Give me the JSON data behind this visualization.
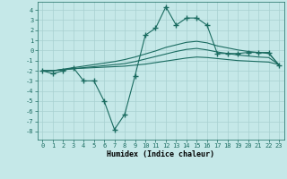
{
  "xlabel": "Humidex (Indice chaleur)",
  "background_color": "#c5e8e8",
  "grid_color": "#a8d0d0",
  "line_color": "#1a6b60",
  "xlim": [
    -0.5,
    23.5
  ],
  "ylim": [
    -8.8,
    4.8
  ],
  "yticks": [
    -8,
    -7,
    -6,
    -5,
    -4,
    -3,
    -2,
    -1,
    0,
    1,
    2,
    3,
    4
  ],
  "xticks": [
    0,
    1,
    2,
    3,
    4,
    5,
    6,
    7,
    8,
    9,
    10,
    11,
    12,
    13,
    14,
    15,
    16,
    17,
    18,
    19,
    20,
    21,
    22,
    23
  ],
  "series": [
    {
      "x": [
        0,
        1,
        2,
        3,
        4,
        5,
        6,
        7,
        8,
        9,
        10,
        11,
        12,
        13,
        14,
        15,
        16,
        17,
        18,
        19,
        20,
        21,
        22,
        23
      ],
      "y": [
        -2.0,
        -2.3,
        -2.0,
        -1.7,
        -3.0,
        -3.0,
        -5.0,
        -7.8,
        -6.3,
        -2.5,
        1.5,
        2.2,
        4.3,
        2.5,
        3.2,
        3.2,
        2.5,
        -0.3,
        -0.3,
        -0.3,
        -0.2,
        -0.2,
        -0.2,
        -1.5
      ],
      "marker": "+",
      "linestyle": "-",
      "markersize": 4,
      "linewidth": 0.8
    },
    {
      "x": [
        0,
        1,
        2,
        3,
        4,
        5,
        6,
        7,
        8,
        9,
        10,
        11,
        12,
        13,
        14,
        15,
        16,
        17,
        18,
        19,
        20,
        21,
        22,
        23
      ],
      "y": [
        -2.0,
        -2.0,
        -1.9,
        -1.8,
        -1.75,
        -1.7,
        -1.65,
        -1.6,
        -1.55,
        -1.45,
        -1.35,
        -1.2,
        -1.05,
        -0.9,
        -0.75,
        -0.65,
        -0.7,
        -0.8,
        -0.9,
        -1.0,
        -1.05,
        -1.1,
        -1.15,
        -1.4
      ],
      "marker": null,
      "linestyle": "-",
      "markersize": 0,
      "linewidth": 0.8
    },
    {
      "x": [
        0,
        1,
        2,
        3,
        4,
        5,
        6,
        7,
        8,
        9,
        10,
        11,
        12,
        13,
        14,
        15,
        16,
        17,
        18,
        19,
        20,
        21,
        22,
        23
      ],
      "y": [
        -2.0,
        -2.0,
        -1.9,
        -1.8,
        -1.7,
        -1.6,
        -1.5,
        -1.4,
        -1.3,
        -1.1,
        -0.85,
        -0.6,
        -0.35,
        -0.1,
        0.1,
        0.2,
        0.05,
        -0.15,
        -0.3,
        -0.45,
        -0.55,
        -0.65,
        -0.7,
        -1.4
      ],
      "marker": null,
      "linestyle": "-",
      "markersize": 0,
      "linewidth": 0.8
    },
    {
      "x": [
        0,
        1,
        2,
        3,
        4,
        5,
        6,
        7,
        8,
        9,
        10,
        11,
        12,
        13,
        14,
        15,
        16,
        17,
        18,
        19,
        20,
        21,
        22,
        23
      ],
      "y": [
        -2.0,
        -2.0,
        -1.85,
        -1.7,
        -1.55,
        -1.4,
        -1.25,
        -1.1,
        -0.9,
        -0.65,
        -0.35,
        -0.05,
        0.3,
        0.55,
        0.8,
        0.9,
        0.75,
        0.45,
        0.25,
        0.05,
        -0.1,
        -0.2,
        -0.3,
        -1.4
      ],
      "marker": null,
      "linestyle": "-",
      "markersize": 0,
      "linewidth": 0.8
    }
  ]
}
